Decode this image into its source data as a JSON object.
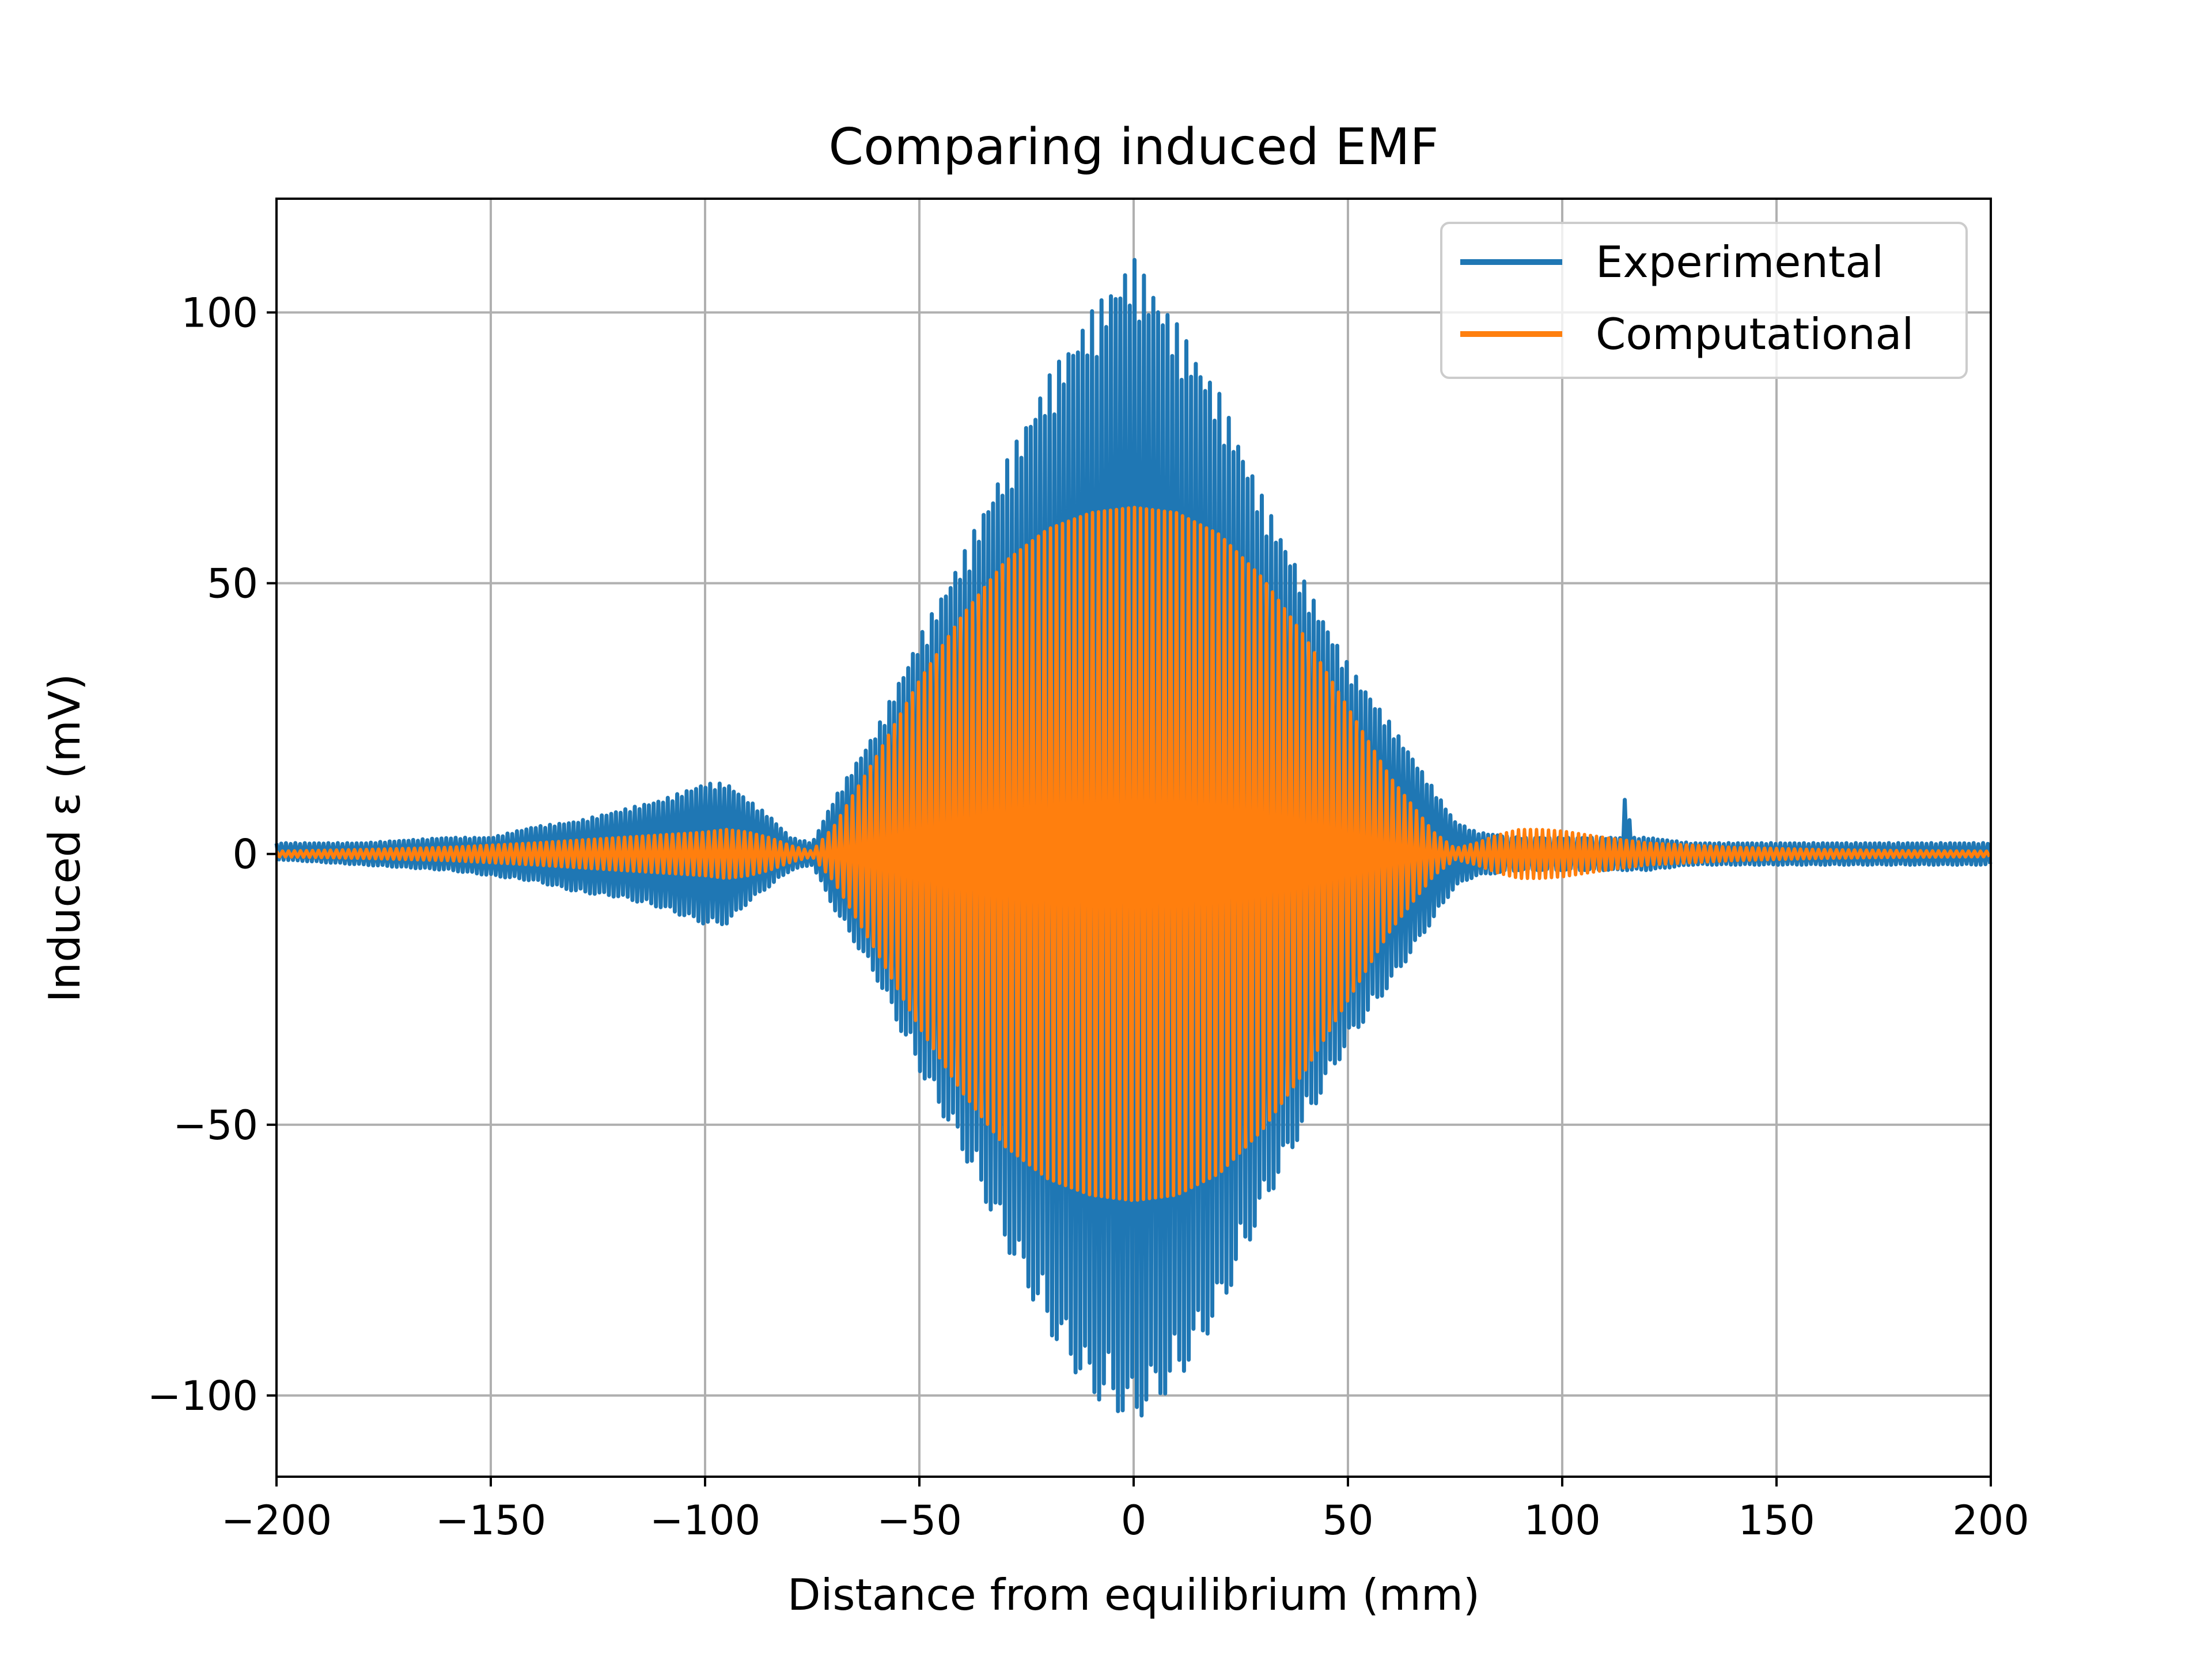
{
  "chart_data": {
    "type": "line",
    "title": "Comparing induced EMF",
    "xlabel": "Distance from equilibrium (mm)",
    "ylabel": "Induced ε (mV)",
    "xlim": [
      -200,
      200
    ],
    "ylim": [
      -115,
      121
    ],
    "xticks": [
      -200,
      -150,
      -100,
      -50,
      0,
      50,
      100,
      150,
      200
    ],
    "xtick_labels": [
      "−200",
      "−150",
      "−100",
      "−50",
      "0",
      "50",
      "100",
      "150",
      "200"
    ],
    "yticks": [
      -100,
      -50,
      0,
      50,
      100
    ],
    "ytick_labels": [
      "−100",
      "−50",
      "0",
      "50",
      "100"
    ],
    "grid": true,
    "legend_position": "top-right",
    "series": [
      {
        "name": "Experimental",
        "color": "#1f77b4",
        "style": "dense oscillation, amplitude envelope",
        "envelope": {
          "x": [
            -200,
            -180,
            -160,
            -150,
            -140,
            -130,
            -120,
            -110,
            -100,
            -95,
            -90,
            -85,
            -80,
            -75,
            -70,
            -60,
            -50,
            -40,
            -30,
            -20,
            -10,
            0,
            10,
            20,
            30,
            40,
            50,
            60,
            70,
            75,
            80,
            90,
            100,
            110,
            114,
            115,
            116,
            120,
            130,
            150,
            170,
            200
          ],
          "max": [
            2,
            2,
            3,
            3,
            5,
            6,
            8,
            10,
            13,
            13,
            10,
            7,
            3,
            2,
            10,
            23,
            40,
            55,
            72,
            88,
            100,
            110,
            98,
            85,
            66,
            50,
            35,
            24,
            12,
            6,
            4,
            3,
            3,
            3,
            3,
            15,
            3,
            3,
            2,
            2,
            2,
            2
          ],
          "min": [
            -1,
            -2,
            -3,
            -4,
            -5,
            -7,
            -8,
            -10,
            -13,
            -13,
            -9,
            -6,
            -3,
            -2,
            -10,
            -23,
            -40,
            -55,
            -72,
            -88,
            -100,
            -105,
            -98,
            -85,
            -66,
            -50,
            -35,
            -24,
            -12,
            -6,
            -4,
            -3,
            -3,
            -3,
            -3,
            -3,
            -3,
            -3,
            -2,
            -2,
            -2,
            -2
          ]
        }
      },
      {
        "name": "Computational",
        "color": "#ff7f0e",
        "style": "dense oscillation, amplitude envelope",
        "envelope": {
          "x": [
            -200,
            -180,
            -160,
            -140,
            -120,
            -100,
            -95,
            -90,
            -85,
            -80,
            -75,
            -70,
            -60,
            -50,
            -40,
            -30,
            -20,
            -10,
            0,
            10,
            20,
            30,
            40,
            50,
            60,
            70,
            75,
            80,
            85,
            90,
            95,
            100,
            110,
            120,
            140,
            160,
            180,
            200
          ],
          "max": [
            0.5,
            0.8,
            1.2,
            2,
            3,
            4,
            4.5,
            4,
            3,
            1.5,
            0.5,
            5,
            18,
            32,
            44,
            54,
            60,
            63,
            64,
            63,
            59,
            51,
            40,
            27,
            14,
            4,
            1,
            2,
            3.5,
            4.5,
            4.5,
            4.2,
            3,
            2,
            1.2,
            0.8,
            0.6,
            0.5
          ],
          "min": [
            -0.5,
            -0.8,
            -1.2,
            -2,
            -3,
            -4,
            -4.5,
            -4,
            -3,
            -1.5,
            -0.5,
            -5,
            -18,
            -32,
            -44,
            -54,
            -60,
            -63,
            -64,
            -63,
            -59,
            -51,
            -40,
            -27,
            -14,
            -4,
            -1,
            -2,
            -3.5,
            -4.5,
            -4.5,
            -4.2,
            -3,
            -2,
            -1.2,
            -0.8,
            -0.6,
            -0.5
          ]
        }
      }
    ]
  }
}
